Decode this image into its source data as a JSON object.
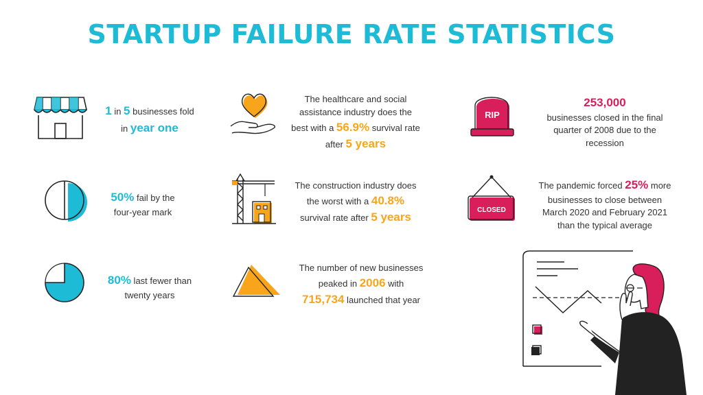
{
  "title": "STARTUP FAILURE RATE STATISTICS",
  "colors": {
    "cyan": "#1ebbd7",
    "orange": "#f8a51b",
    "pink": "#d81e5b",
    "ink": "#222222"
  },
  "stats": {
    "s1": {
      "a": "1",
      "b": " in ",
      "c": "5",
      "d": " businesses fold",
      "e": "in ",
      "f": "year one"
    },
    "s2": {
      "a": "50%",
      "b": " fail by the",
      "c": "four-year mark"
    },
    "s3": {
      "a": "80%",
      "b": " last fewer than",
      "c": "twenty years"
    },
    "s4": {
      "l1": "The healthcare and social",
      "l2": "assistance industry does the",
      "a": "best with a ",
      "b": "56.9%",
      "c": " survival rate",
      "d": "after ",
      "e": "5 years"
    },
    "s5": {
      "l1": "The construction industry does",
      "a": "the worst with a ",
      "b": "40.8%",
      "c": "survival rate after ",
      "d": "5 years"
    },
    "s6": {
      "l1": "The number of new businesses",
      "a": "peaked in ",
      "b": "2006",
      "c": " with",
      "d": "715,734",
      "e": " launched that year"
    },
    "s7": {
      "a": "253,000",
      "l1": "businesses closed in the final",
      "l2": "quarter of 2008 due to the",
      "l3": "recession"
    },
    "s8": {
      "a": "The pandemic forced ",
      "b": "25%",
      "c": " more",
      "l1": "businesses to close between",
      "l2": "March 2020 and February 2021",
      "l3": "than the typical average"
    }
  },
  "icons": {
    "rip_text": "RIP",
    "closed_text": "CLOSED",
    "names": [
      "store-icon",
      "pie-half-icon",
      "pie-three-quarter-icon",
      "heart-hand-icon",
      "crane-icon",
      "pyramid-icon",
      "tombstone-icon",
      "closed-sign-icon",
      "person-whiteboard-illustration"
    ]
  }
}
